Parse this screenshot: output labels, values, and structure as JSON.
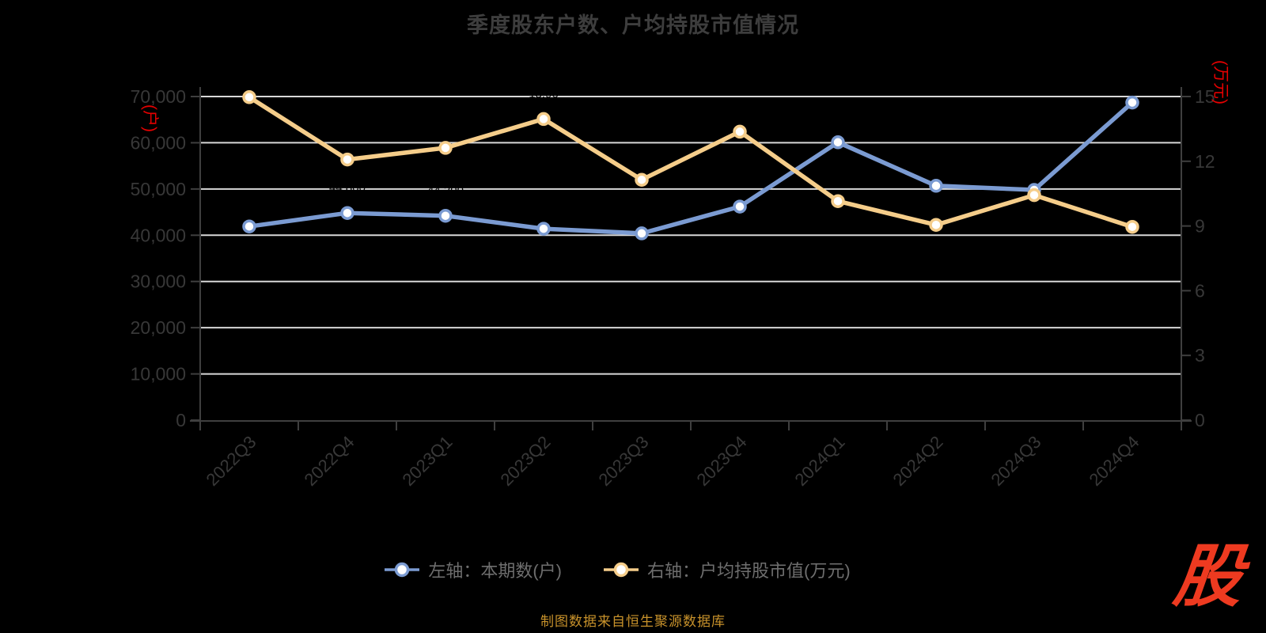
{
  "title": "季度股东户数、户均持股市值情况",
  "left_axis": {
    "unit": "(户)",
    "max": 70000,
    "ticks": [
      {
        "value": 0,
        "label": "0"
      },
      {
        "value": 10000,
        "label": "10,000"
      },
      {
        "value": 20000,
        "label": "20,000"
      },
      {
        "value": 30000,
        "label": "30,000"
      },
      {
        "value": 40000,
        "label": "40,000"
      },
      {
        "value": 50000,
        "label": "50,000"
      },
      {
        "value": 60000,
        "label": "60,000"
      },
      {
        "value": 70000,
        "label": "70,000"
      }
    ]
  },
  "right_axis": {
    "unit": "(万元)",
    "max": 15,
    "ticks": [
      {
        "value": 0,
        "label": "0"
      },
      {
        "value": 3,
        "label": "3"
      },
      {
        "value": 6,
        "label": "6"
      },
      {
        "value": 9,
        "label": "9"
      },
      {
        "value": 12,
        "label": "12"
      },
      {
        "value": 15,
        "label": "15"
      }
    ]
  },
  "chart_data": {
    "type": "line",
    "title": "季度股东户数、户均持股市值情况",
    "categories": [
      "2022Q3",
      "2022Q4",
      "2023Q1",
      "2023Q2",
      "2023Q3",
      "2023Q4",
      "2024Q1",
      "2024Q2",
      "2024Q3",
      "2024Q4"
    ],
    "series": [
      {
        "name": "左轴：本期数(户)",
        "axis": "left",
        "color": "#7b9bd2",
        "label_decimals": 0,
        "values": [
          41900,
          44800,
          44200,
          41400,
          40400,
          46200,
          60100,
          50700,
          49800,
          68700
        ]
      },
      {
        "name": "右轴：户均持股市值(万元)",
        "axis": "right",
        "color": "#f5cd8a",
        "label_decimals": 2,
        "values": [
          14.97,
          12.08,
          12.62,
          13.96,
          11.14,
          13.37,
          10.15,
          9.05,
          10.43,
          8.96
        ]
      }
    ],
    "xlabel": "",
    "ylabel_left": "(户)",
    "ylabel_right": "(万元)",
    "left_ylim": [
      0,
      70000
    ],
    "right_ylim": [
      0,
      15
    ],
    "grid": true,
    "legend_position": "bottom"
  },
  "legend": {
    "items": [
      {
        "label": "左轴：本期数(户)",
        "color": "#7b9bd2"
      },
      {
        "label": "右轴：户均持股市值(万元)",
        "color": "#f5cd8a"
      }
    ]
  },
  "footer": {
    "caption": "制图数据来自恒生聚源数据库",
    "logo_text": "股"
  },
  "colors": {
    "background": "#000000",
    "title": "#3d3d3d",
    "grid": "#d8d8d8",
    "axis": "#3f3f3f",
    "tick_label": "#383838",
    "legend_text": "#6e6e6e",
    "unit_label": "#e60000",
    "caption": "#c8922b",
    "logo": "#ee3a20",
    "marker_fill": "#ffffff",
    "hidden_label": "#000000"
  }
}
